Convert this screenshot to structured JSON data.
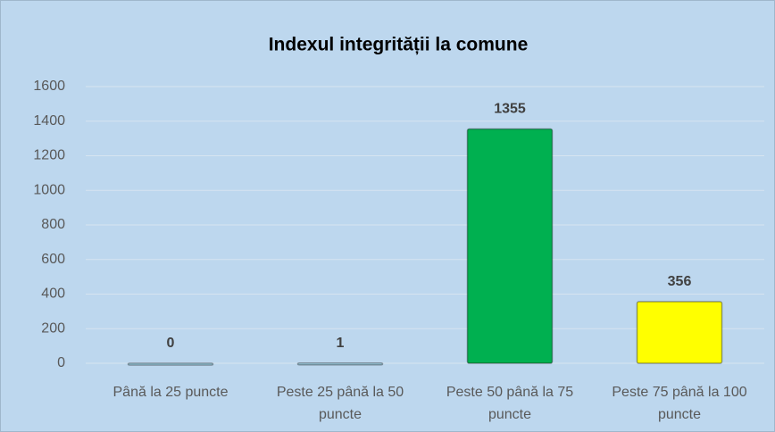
{
  "chart_data": {
    "type": "bar",
    "title": "Indexul integrității la comune",
    "categories": [
      "Până la 25 puncte",
      "Peste 25 până la 50 puncte",
      "Peste 50 până la 75 puncte",
      "Peste 75 până la 100 puncte"
    ],
    "values": [
      0,
      1,
      1355,
      356
    ],
    "colors": [
      "#a9dcf0",
      "#a9dcf0",
      "#00b050",
      "#ffff00"
    ],
    "ylim": [
      0,
      1600
    ],
    "yticks": [
      0,
      200,
      400,
      600,
      800,
      1000,
      1200,
      1400,
      1600
    ],
    "grid": true
  }
}
